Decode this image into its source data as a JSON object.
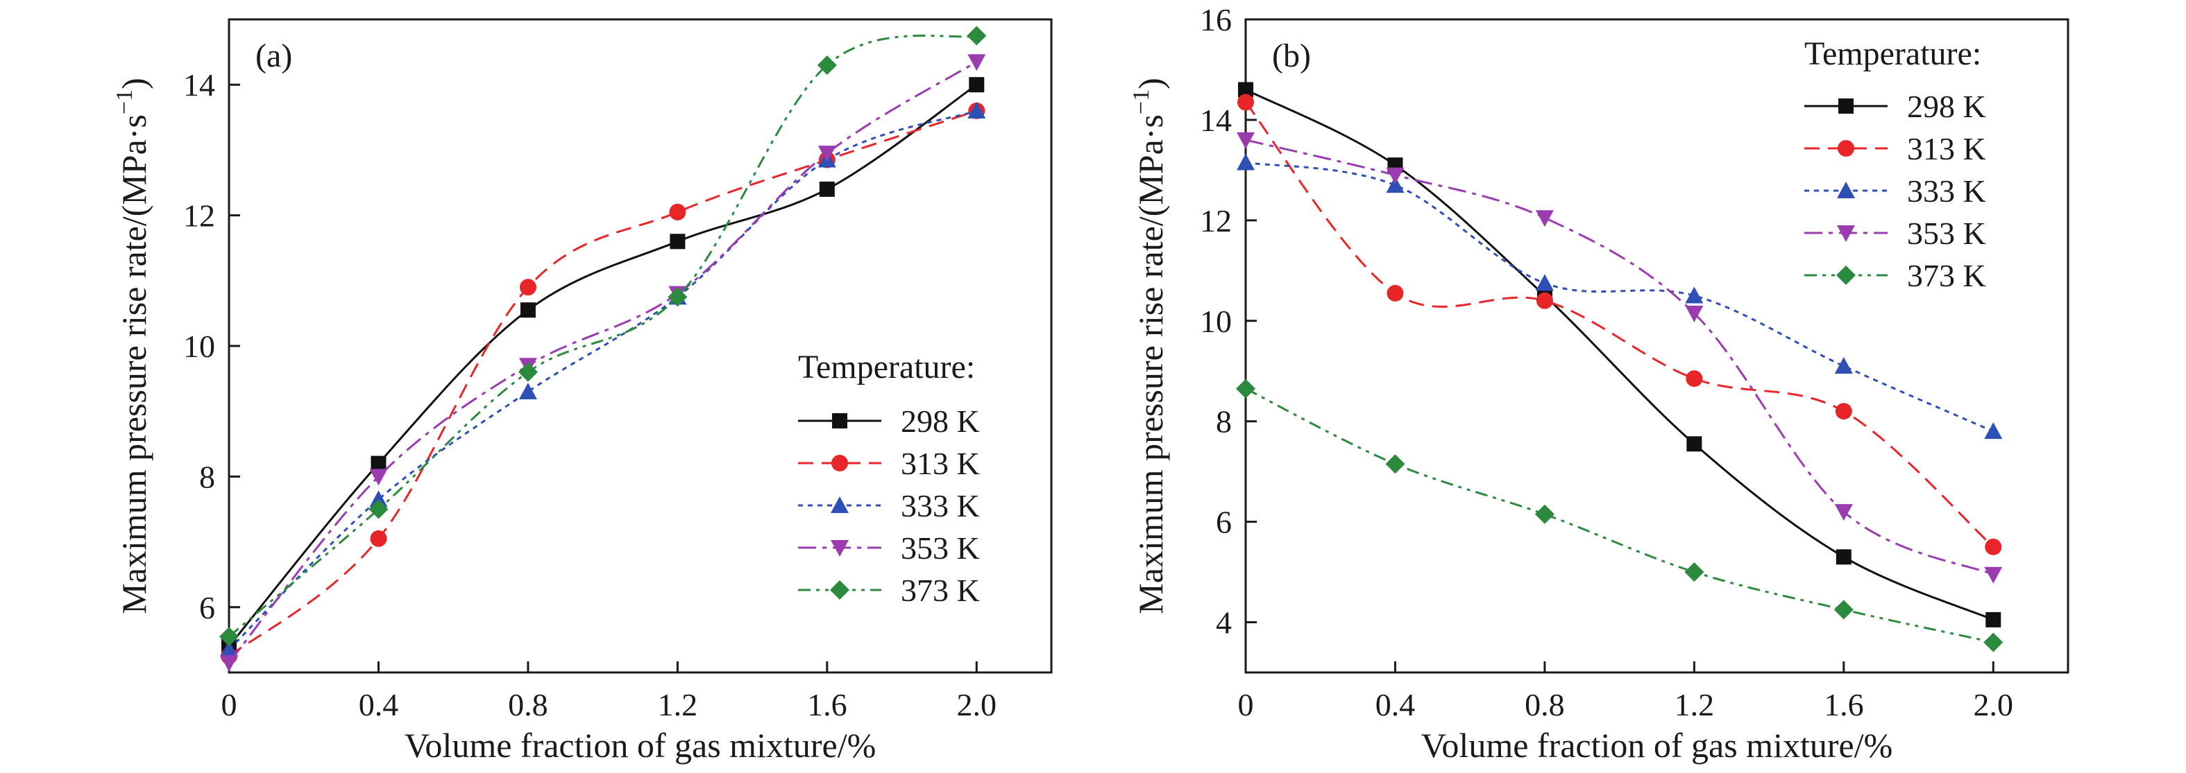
{
  "chart_data": [
    {
      "type": "line",
      "panel_label": "(a)",
      "xlabel": "Volume fraction of gas mixture/%",
      "ylabel": "Maximum pressure rise rate/(MPa·s",
      "ylabel_superscript": "−1",
      "ylabel_end": ")",
      "x": [
        0,
        0.4,
        0.8,
        1.2,
        1.6,
        2.0
      ],
      "x_tick_labels": [
        "0",
        "0.4",
        "0.8",
        "1.2",
        "1.6",
        "2.0"
      ],
      "xlim": [
        0,
        2.2
      ],
      "ylim": [
        5,
        15
      ],
      "y_ticks": [
        6,
        8,
        10,
        12,
        14
      ],
      "legend_title": "Temperature:",
      "legend_position": "lower-right",
      "series": [
        {
          "name": "298 K",
          "values": [
            5.4,
            8.2,
            10.55,
            11.6,
            12.4,
            14.0
          ],
          "color": "#111111",
          "marker": "square",
          "dash": ""
        },
        {
          "name": "313 K",
          "values": [
            5.25,
            7.05,
            10.9,
            12.05,
            12.85,
            13.6
          ],
          "color": "#e8262a",
          "marker": "circle",
          "dash": "22,12"
        },
        {
          "name": "333 K",
          "values": [
            5.35,
            7.65,
            9.3,
            10.75,
            12.85,
            13.6
          ],
          "color": "#2e4fb5",
          "marker": "triangle-up",
          "dash": "7,7"
        },
        {
          "name": "353 K",
          "values": [
            5.15,
            8.0,
            9.7,
            10.8,
            12.95,
            14.35
          ],
          "color": "#9b3bb0",
          "marker": "triangle-down",
          "dash": "26,9,6,9"
        },
        {
          "name": "373 K",
          "values": [
            5.55,
            7.5,
            9.6,
            10.75,
            14.3,
            14.75
          ],
          "color": "#2b8a3e",
          "marker": "diamond",
          "dash": "18,8,5,8,5,8"
        }
      ]
    },
    {
      "type": "line",
      "panel_label": "(b)",
      "xlabel": "Volume fraction of gas mixture/%",
      "ylabel": "Maximum pressure rise rate/(MPa·s",
      "ylabel_superscript": "−1",
      "ylabel_end": ")",
      "x": [
        0,
        0.4,
        0.8,
        1.2,
        1.6,
        2.0
      ],
      "x_tick_labels": [
        "0",
        "0.4",
        "0.8",
        "1.2",
        "1.6",
        "2.0"
      ],
      "xlim": [
        0,
        2.2
      ],
      "ylim": [
        3,
        16
      ],
      "y_ticks": [
        4,
        6,
        8,
        10,
        12,
        14,
        16
      ],
      "legend_title": "Temperature:",
      "legend_position": "upper-right",
      "series": [
        {
          "name": "298 K",
          "values": [
            14.6,
            13.1,
            10.5,
            7.55,
            5.3,
            4.05
          ],
          "color": "#111111",
          "marker": "square",
          "dash": ""
        },
        {
          "name": "313 K",
          "values": [
            14.35,
            10.55,
            10.4,
            8.85,
            8.2,
            5.5
          ],
          "color": "#e8262a",
          "marker": "circle",
          "dash": "22,12"
        },
        {
          "name": "333 K",
          "values": [
            13.15,
            12.7,
            10.75,
            10.5,
            9.1,
            7.8
          ],
          "color": "#2e4fb5",
          "marker": "triangle-up",
          "dash": "7,7"
        },
        {
          "name": "353 K",
          "values": [
            13.6,
            12.9,
            12.05,
            10.15,
            6.2,
            4.95
          ],
          "color": "#9b3bb0",
          "marker": "triangle-down",
          "dash": "26,9,6,9"
        },
        {
          "name": "373 K",
          "values": [
            8.65,
            7.15,
            6.15,
            5.0,
            4.25,
            3.6
          ],
          "color": "#2b8a3e",
          "marker": "diamond",
          "dash": "18,8,5,8,5,8"
        }
      ]
    }
  ]
}
